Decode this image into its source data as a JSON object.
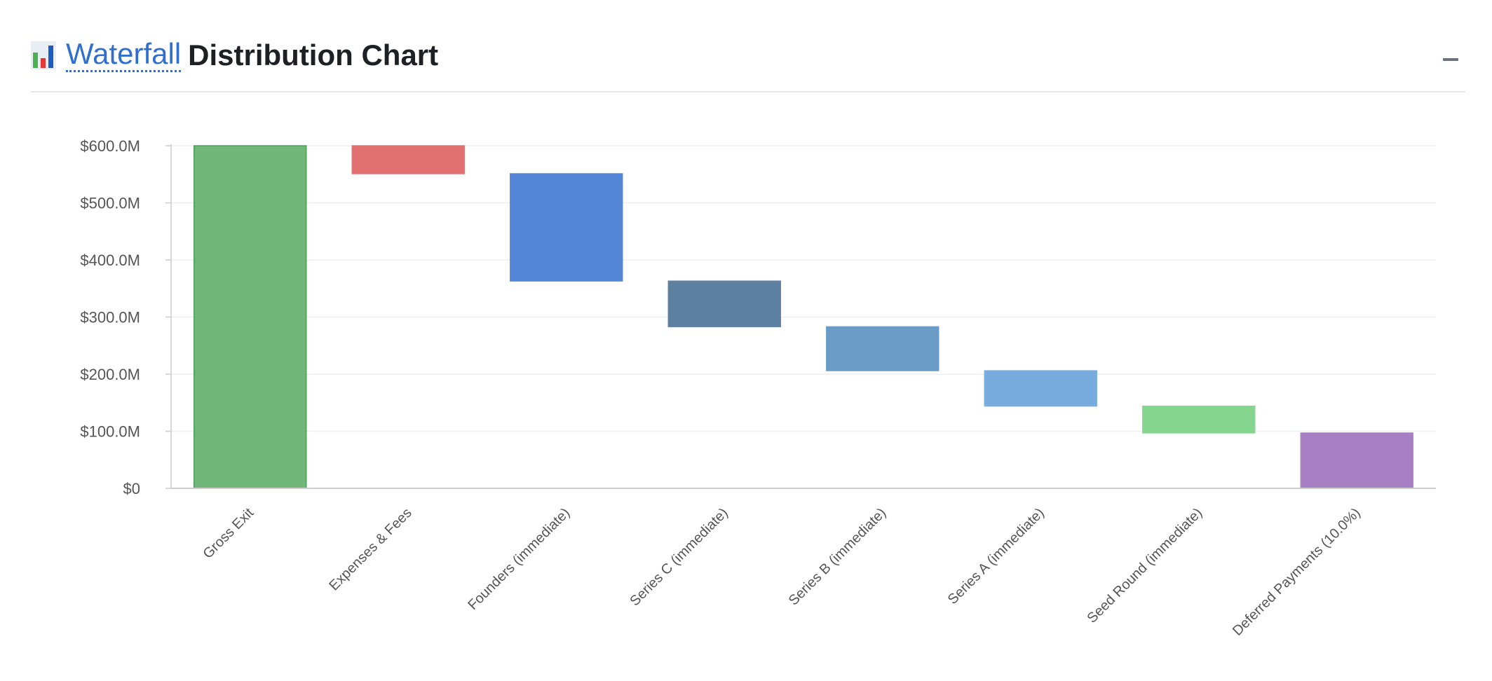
{
  "header": {
    "icon": "bar-chart-icon",
    "title_link": "Waterfall",
    "title_rest": "Distribution Chart",
    "collapse_icon": "minus-icon"
  },
  "colors": {
    "gross": "#72b77a",
    "gross_border": "#3f9a52",
    "expenses": "#e07070",
    "founders": "#5585d6",
    "series_c": "#5d7fa0",
    "series_b": "#6a9ac6",
    "series_a": "#78acdf",
    "seed": "#85d58f",
    "deferred": "#a87fc5",
    "grid": "#eeeeee",
    "axis": "#cccccc"
  },
  "chart_data": {
    "type": "bar",
    "subtype": "waterfall",
    "title": "Waterfall Distribution Chart",
    "xlabel": "",
    "ylabel": "",
    "ylim": [
      0,
      600
    ],
    "yunit": "$M",
    "yticks": [
      {
        "value": 0,
        "label": "$0"
      },
      {
        "value": 100,
        "label": "$100.0M"
      },
      {
        "value": 200,
        "label": "$200.0M"
      },
      {
        "value": 300,
        "label": "$300.0M"
      },
      {
        "value": 400,
        "label": "$400.0M"
      },
      {
        "value": 500,
        "label": "$500.0M"
      },
      {
        "value": 600,
        "label": "$600.0M"
      }
    ],
    "bars": [
      {
        "category": "Gross Exit",
        "start": 0,
        "end": 600,
        "color_key": "gross"
      },
      {
        "category": "Expenses & Fees",
        "start": 551,
        "end": 600,
        "color_key": "expenses"
      },
      {
        "category": "Founders (immediate)",
        "start": 363,
        "end": 551,
        "color_key": "founders"
      },
      {
        "category": "Series C (immediate)",
        "start": 283,
        "end": 363,
        "color_key": "series_c"
      },
      {
        "category": "Series B (immediate)",
        "start": 206,
        "end": 283,
        "color_key": "series_b"
      },
      {
        "category": "Series A (immediate)",
        "start": 144,
        "end": 206,
        "color_key": "series_a"
      },
      {
        "category": "Seed Round (immediate)",
        "start": 97,
        "end": 144,
        "color_key": "seed"
      },
      {
        "category": "Deferred Payments (10.0%)",
        "start": 0,
        "end": 97,
        "color_key": "deferred"
      }
    ],
    "grid": true,
    "legend": "none"
  }
}
